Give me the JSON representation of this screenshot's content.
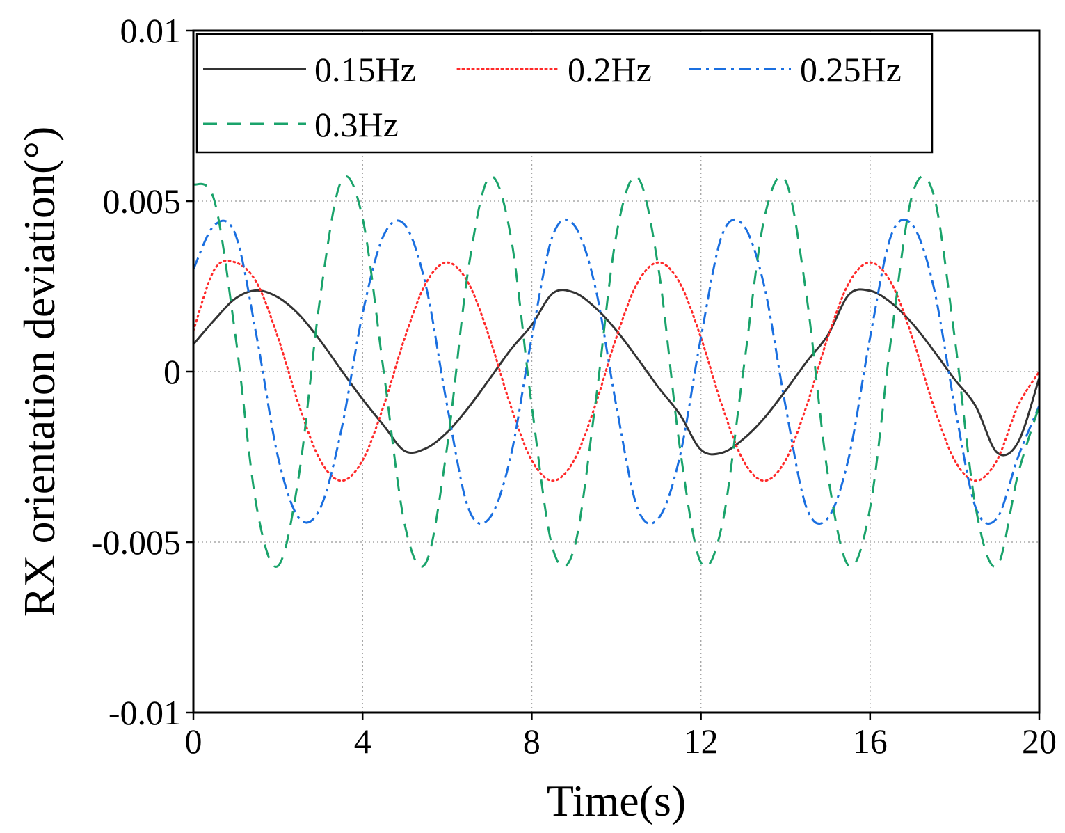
{
  "chart_data": {
    "type": "line",
    "title": "",
    "xlabel": "Time(s)",
    "ylabel": "RX orientation deviation(°)",
    "xlim": [
      0,
      20
    ],
    "ylim": [
      -0.01,
      0.01
    ],
    "xticks": [
      0,
      4,
      8,
      12,
      16,
      20
    ],
    "xtick_labels": [
      "0",
      "4",
      "8",
      "12",
      "16",
      "20"
    ],
    "yticks": [
      0.01,
      0.005,
      0,
      -0.005,
      -0.01
    ],
    "ytick_labels": [
      "0.01",
      "0.005",
      "0",
      "-0.005",
      "-0.01"
    ],
    "grid": true,
    "legend_position": "top",
    "series": [
      {
        "name": "0.15Hz",
        "color": "#333333",
        "style": "solid",
        "frequency_hz": 0.15,
        "x": [
          0,
          0.5,
          1,
          1.5,
          2,
          2.5,
          3,
          3.5,
          4,
          4.5,
          5,
          5.5,
          6,
          6.5,
          7,
          7.5,
          8,
          8.5,
          9,
          9.5,
          10,
          10.5,
          11,
          11.5,
          12,
          12.5,
          13,
          13.5,
          14,
          14.5,
          15,
          15.5,
          16,
          16.5,
          17,
          17.5,
          18,
          18.5,
          19,
          19.5,
          20
        ],
        "values": [
          0.0008,
          0.00152,
          0.00215,
          0.00238,
          0.00218,
          0.00167,
          0.00091,
          4e-05,
          -0.00081,
          -0.00158,
          -0.00233,
          -0.00225,
          -0.00178,
          -0.00106,
          -0.00022,
          0.00064,
          0.00137,
          0.0023,
          0.00232,
          0.00188,
          0.00121,
          0.00039,
          -0.00047,
          -0.00125,
          -0.00229,
          -0.00238,
          -0.00198,
          -0.00136,
          -0.00056,
          0.00029,
          0.00107,
          0.00226,
          0.00237,
          0.00202,
          0.00141,
          0.00062,
          -0.00023,
          -0.00102,
          -0.00237,
          -0.00207,
          -0.00018
        ]
      },
      {
        "name": "0.2Hz",
        "color": "#ff2a2a",
        "style": "dotted",
        "frequency_hz": 0.2,
        "x": [
          0,
          0.5,
          1,
          1.5,
          2,
          2.5,
          3,
          3.5,
          4,
          4.5,
          5,
          5.5,
          6,
          6.5,
          7,
          7.5,
          8,
          8.5,
          9,
          9.5,
          10,
          10.5,
          11,
          11.5,
          12,
          12.5,
          13,
          13.5,
          14,
          14.5,
          15,
          15.5,
          16,
          16.5,
          17,
          17.5,
          18,
          18.5,
          19,
          19.5,
          20
        ],
        "values": [
          0.0012,
          0.003,
          0.0032,
          0.0026,
          0.001,
          -0.001,
          -0.0026,
          -0.0032,
          -0.0026,
          -0.001,
          0.001,
          0.0026,
          0.0032,
          0.0026,
          0.001,
          -0.001,
          -0.0026,
          -0.0032,
          -0.0026,
          -0.001,
          0.001,
          0.0026,
          0.0032,
          0.0026,
          0.001,
          -0.001,
          -0.0026,
          -0.0032,
          -0.0026,
          -0.001,
          0.001,
          0.0026,
          0.0032,
          0.0026,
          0.001,
          -0.001,
          -0.0026,
          -0.0032,
          -0.0026,
          -0.001,
          0.0
        ]
      },
      {
        "name": "0.25Hz",
        "color": "#1a6fe0",
        "style": "dashdot",
        "frequency_hz": 0.25,
        "x": [
          0,
          0.5,
          1,
          1.5,
          2,
          2.5,
          3,
          3.5,
          4,
          4.5,
          5,
          5.5,
          6,
          6.5,
          7,
          7.5,
          8,
          8.5,
          9,
          9.5,
          10,
          10.5,
          11,
          11.5,
          12,
          12.5,
          13,
          13.5,
          14,
          14.5,
          15,
          15.5,
          16,
          16.5,
          17,
          17.5,
          18,
          18.5,
          19,
          19.5,
          20
        ],
        "values": [
          0.003,
          0.0043,
          0.004,
          0.001,
          -0.0025,
          -0.0043,
          -0.004,
          -0.0017,
          0.0017,
          0.004,
          0.0043,
          0.0025,
          -0.001,
          -0.004,
          -0.0043,
          -0.0025,
          0.001,
          0.004,
          0.0043,
          0.0025,
          -0.001,
          -0.004,
          -0.0043,
          -0.0025,
          0.001,
          0.004,
          0.0043,
          0.0025,
          -0.001,
          -0.004,
          -0.0043,
          -0.0025,
          0.001,
          0.004,
          0.0043,
          0.0025,
          -0.001,
          -0.004,
          -0.0043,
          -0.0025,
          -0.001
        ]
      },
      {
        "name": "0.3Hz",
        "color": "#1aa36b",
        "style": "dashed",
        "frequency_hz": 0.3,
        "x": [
          0,
          0.5,
          1,
          1.5,
          2,
          2.5,
          3,
          3.5,
          4,
          4.5,
          5,
          5.5,
          6,
          6.5,
          7,
          7.5,
          8,
          8.5,
          9,
          9.5,
          10,
          10.5,
          11,
          11.5,
          12,
          12.5,
          13,
          13.5,
          14,
          14.5,
          15,
          15.5,
          16,
          16.5,
          17,
          17.5,
          18,
          18.5,
          19,
          19.5,
          20
        ],
        "values": [
          0.0055,
          0.005,
          0.001,
          -0.004,
          -0.0057,
          -0.003,
          0.0022,
          0.0056,
          0.0045,
          0.0,
          -0.0045,
          -0.0056,
          -0.0022,
          0.003,
          0.0057,
          0.004,
          -0.001,
          -0.0052,
          -0.0052,
          -0.001,
          0.004,
          0.0057,
          0.003,
          -0.0022,
          -0.0056,
          -0.0045,
          0.0,
          0.0045,
          0.0056,
          0.0022,
          -0.003,
          -0.0057,
          -0.004,
          0.001,
          0.0052,
          0.0052,
          0.001,
          -0.004,
          -0.0057,
          -0.003,
          -0.001
        ]
      }
    ]
  }
}
